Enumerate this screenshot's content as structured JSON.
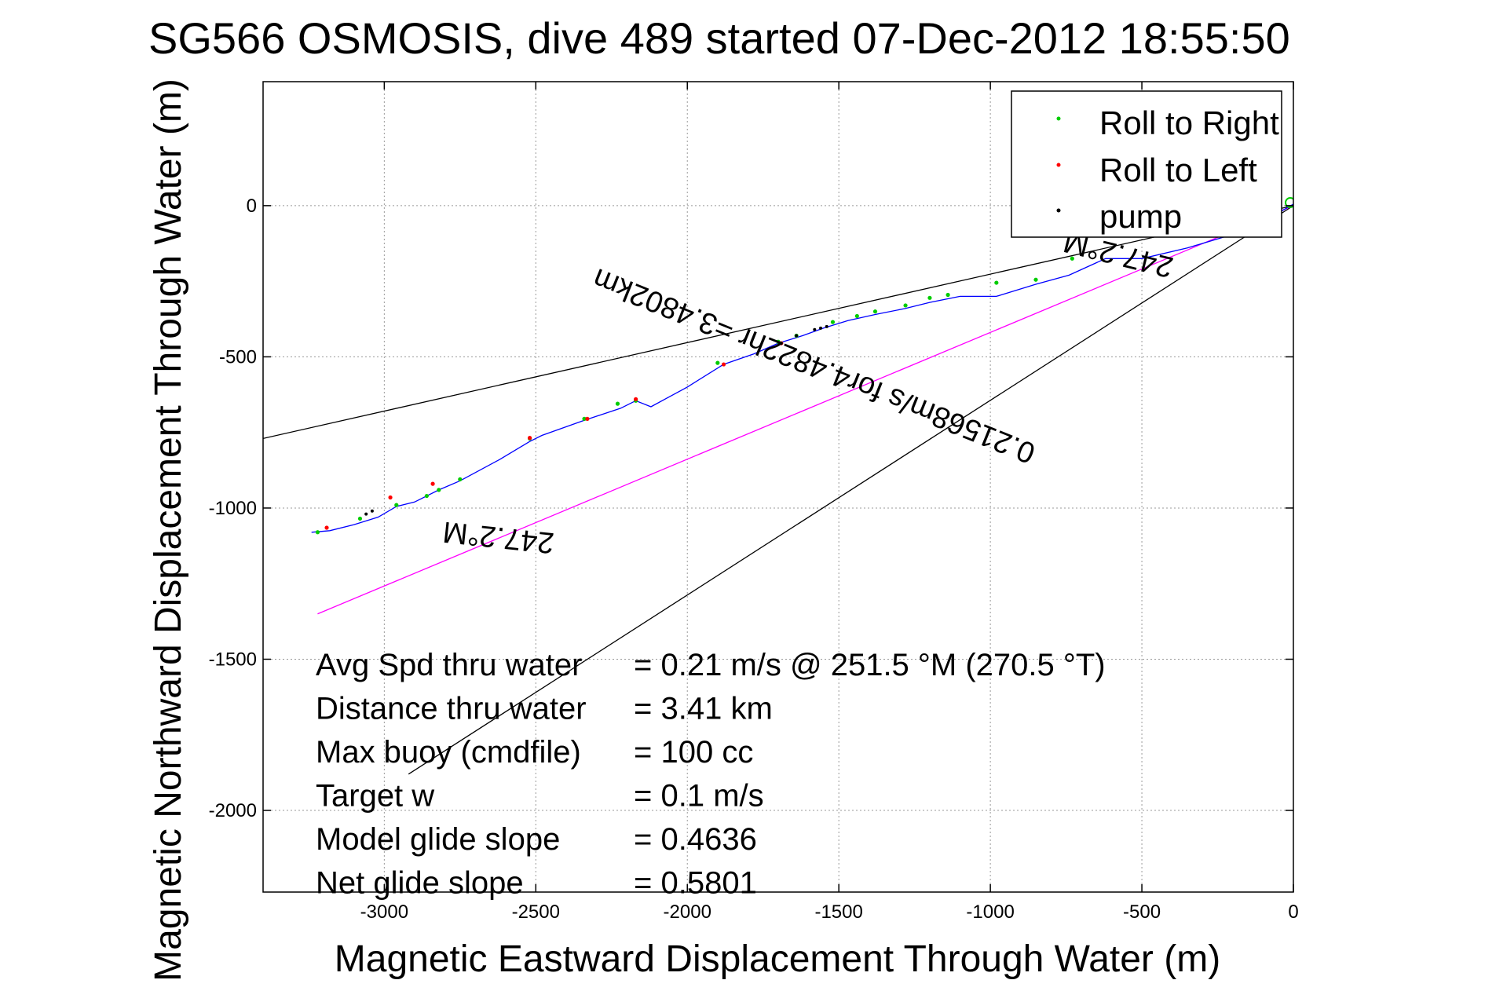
{
  "chart_data": {
    "type": "line",
    "title": "SG566 OSMOSIS, dive 489 started 07-Dec-2012 18:55:50",
    "xlabel": "Magnetic Eastward Displacement Through Water (m)",
    "ylabel": "Magnetic Northward Displacement Through Water (m)",
    "xlim": [
      -3400,
      0
    ],
    "ylim": [
      -2270,
      410
    ],
    "xticks": [
      -3000,
      -2500,
      -2000,
      -1500,
      -1000,
      -500,
      0
    ],
    "yticks": [
      0,
      -500,
      -1000,
      -1500,
      -2000
    ],
    "grid": true,
    "legend": {
      "placement": "top-right",
      "entries": [
        {
          "name": "Roll to Right",
          "color": "#00cc00"
        },
        {
          "name": "Roll to Left",
          "color": "#ff0000"
        },
        {
          "name": "pump",
          "color": "#000000"
        }
      ]
    },
    "track": {
      "color": "#0000ff",
      "x": [
        0,
        -60,
        -150,
        -250,
        -350,
        -500,
        -620,
        -740,
        -850,
        -980,
        -1100,
        -1200,
        -1280,
        -1380,
        -1470,
        -1550,
        -1620,
        -1700,
        -1780,
        -1880,
        -2000,
        -2120,
        -2170,
        -2220,
        -2340,
        -2480,
        -2520,
        -2620,
        -2750,
        -2820,
        -2860,
        -2900,
        -2960,
        -3020,
        -3100,
        -3180,
        -3240
      ],
      "y": [
        5,
        -30,
        -80,
        -110,
        -140,
        -175,
        -175,
        -230,
        -260,
        -300,
        -300,
        -320,
        -340,
        -360,
        -380,
        -405,
        -430,
        -455,
        -490,
        -525,
        -600,
        -665,
        -645,
        -670,
        -710,
        -760,
        -780,
        -840,
        -910,
        -940,
        -960,
        -980,
        -995,
        -1030,
        -1055,
        -1075,
        -1080
      ]
    },
    "roll_right_points": {
      "x": [
        -730,
        -850,
        -980,
        -1140,
        -1200,
        -1280,
        -1380,
        -1440,
        -1520,
        -1640,
        -1700,
        -1900,
        -2170,
        -2230,
        -2340,
        -2520,
        -2750,
        -2820,
        -2860,
        -2960,
        -3080,
        -3220
      ],
      "y": [
        -175,
        -245,
        -255,
        -295,
        -305,
        -330,
        -350,
        -365,
        -385,
        -430,
        -450,
        -520,
        -645,
        -655,
        -705,
        -770,
        -905,
        -940,
        -960,
        -990,
        -1035,
        -1080
      ]
    },
    "roll_left_points": {
      "x": [
        -1690,
        -1880,
        -2170,
        -2330,
        -2520,
        -2840,
        -2980,
        -3190
      ],
      "y": [
        -455,
        -525,
        -640,
        -705,
        -768,
        -920,
        -965,
        -1065
      ]
    },
    "pump_points": {
      "x": [
        -1540,
        -1560,
        -1580,
        -1640,
        -1690,
        -3040,
        -3060
      ],
      "y": [
        -400,
        -405,
        -410,
        -430,
        -455,
        -1010,
        -1020
      ]
    },
    "reference_lines": [
      {
        "color": "#000000",
        "x": [
          0,
          -3400
        ],
        "y": [
          0,
          -770
        ]
      },
      {
        "color": "#ff00ff",
        "x": [
          0,
          -3220
        ],
        "y": [
          0,
          -1350
        ]
      },
      {
        "color": "#000000",
        "x": [
          0,
          -2920
        ],
        "y": [
          0,
          -1880
        ]
      }
    ],
    "start_marker": {
      "color": "#00cc00",
      "x": 0,
      "y": 10
    },
    "annotations": [
      {
        "text": "247.2°M",
        "x": -2620,
        "y": -1065,
        "angle": 186
      },
      {
        "text": "0.21568m/s for4.4822hr =3.4802km",
        "x": -1570,
        "y": -500,
        "angle": 202
      },
      {
        "text": "247.2°M",
        "x": -570,
        "y": -130,
        "angle": 194
      }
    ],
    "stats": [
      {
        "label": "Avg Spd thru water",
        "value": "=  0.21 m/s @ 251.5 °M (270.5 °T)"
      },
      {
        "label": "Distance thru water",
        "value": "=  3.41 km"
      },
      {
        "label": "Max buoy (cmdfile)",
        "value": "= 100 cc"
      },
      {
        "label": "Target w",
        "value": "= 0.1 m/s"
      },
      {
        "label": "Model glide slope",
        "value": "= 0.4636"
      },
      {
        "label": "Net glide slope",
        "value": "= 0.5801"
      }
    ]
  }
}
